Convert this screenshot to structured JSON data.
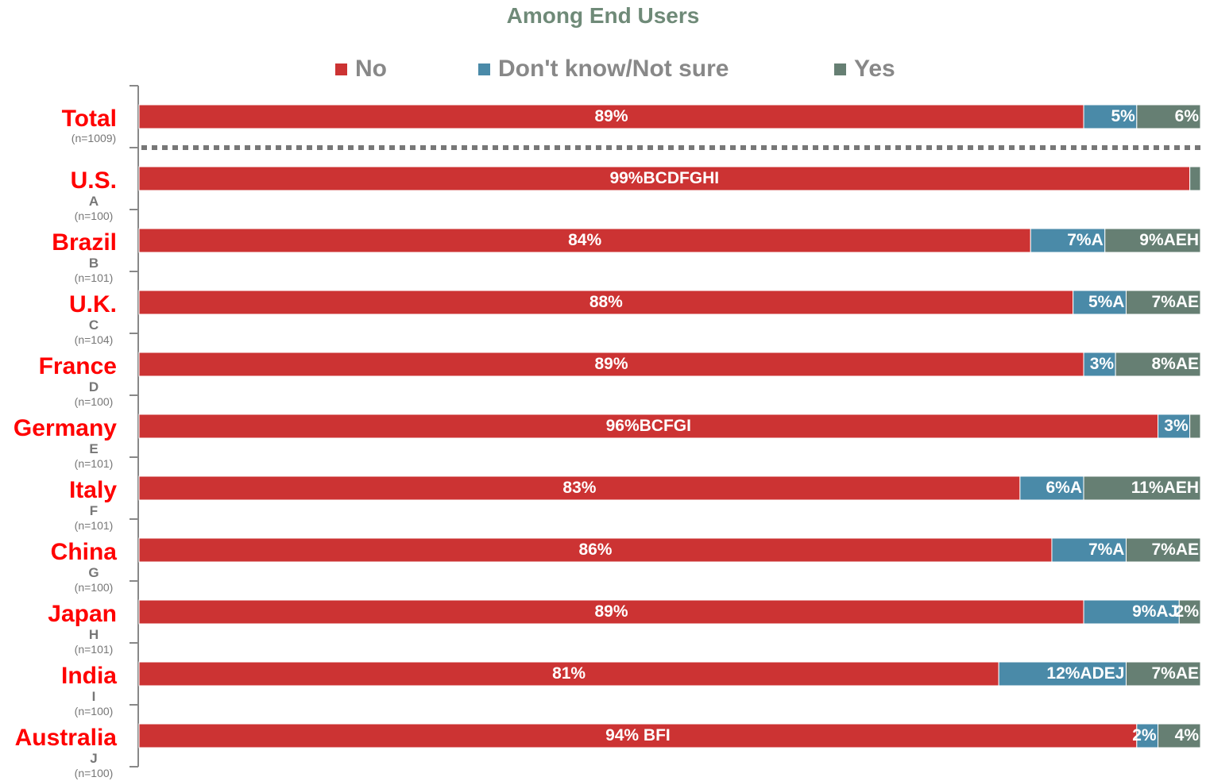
{
  "title": "Among End Users",
  "legend": [
    {
      "label": "No",
      "color": "#cc3333",
      "icon": "square"
    },
    {
      "label": "Don't know/Not sure",
      "color": "#4a8aa8",
      "icon": "square"
    },
    {
      "label": "Yes",
      "color": "#667f73",
      "icon": "square"
    }
  ],
  "colors": {
    "label_red": "#ff0000",
    "axis": "#888888",
    "bar_text": "#ffffff",
    "divider": "#777777"
  },
  "chart_data": {
    "type": "bar",
    "orientation": "horizontal",
    "stacked": true,
    "xlim": [
      0,
      100
    ],
    "unit": "%",
    "series_names": [
      "No",
      "Don't know/Not sure",
      "Yes"
    ],
    "categories": [
      {
        "name": "Total",
        "letter": "",
        "n": "(n=1009)",
        "values": [
          89,
          5,
          6
        ],
        "labels": [
          "89%",
          "5%",
          "6%"
        ]
      },
      {
        "name": "U.S.",
        "letter": "A",
        "n": "(n=100)",
        "values": [
          99,
          0,
          1
        ],
        "labels": [
          "99%BCDFGHI",
          "",
          ""
        ]
      },
      {
        "name": "Brazil",
        "letter": "B",
        "n": "(n=101)",
        "values": [
          84,
          7,
          9
        ],
        "labels": [
          "84%",
          "7%A",
          "9%AEH"
        ]
      },
      {
        "name": "U.K.",
        "letter": "C",
        "n": "(n=104)",
        "values": [
          88,
          5,
          7
        ],
        "labels": [
          "88%",
          "5%A",
          "7%AE"
        ]
      },
      {
        "name": "France",
        "letter": "D",
        "n": "(n=100)",
        "values": [
          89,
          3,
          8
        ],
        "labels": [
          "89%",
          "3%",
          "8%AE"
        ]
      },
      {
        "name": "Germany",
        "letter": "E",
        "n": "(n=101)",
        "values": [
          96,
          3,
          1
        ],
        "labels": [
          "96%BCFGI",
          "3%",
          ""
        ]
      },
      {
        "name": "Italy",
        "letter": "F",
        "n": "(n=101)",
        "values": [
          83,
          6,
          11
        ],
        "labels": [
          "83%",
          "6%A",
          "11%AEH"
        ]
      },
      {
        "name": "China",
        "letter": "G",
        "n": "(n=100)",
        "values": [
          86,
          7,
          7
        ],
        "labels": [
          "86%",
          "7%A",
          "7%AE"
        ]
      },
      {
        "name": "Japan",
        "letter": "H",
        "n": "(n=101)",
        "values": [
          89,
          9,
          2
        ],
        "labels": [
          "89%",
          "9%AJ",
          "2%"
        ]
      },
      {
        "name": "India",
        "letter": "I",
        "n": "(n=100)",
        "values": [
          81,
          12,
          7
        ],
        "labels": [
          "81%",
          "12%ADEJ",
          "7%AE"
        ]
      },
      {
        "name": "Australia",
        "letter": "J",
        "n": "(n=100)",
        "values": [
          94,
          2,
          4
        ],
        "labels": [
          "94% BFI",
          "2%",
          "4%"
        ]
      }
    ]
  }
}
